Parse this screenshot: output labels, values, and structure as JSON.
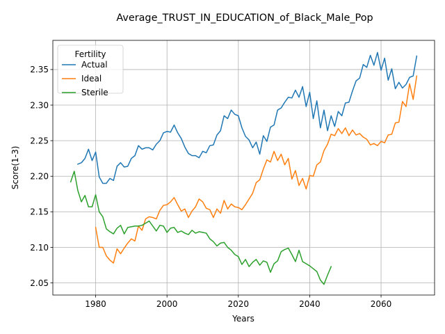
{
  "chart_data": {
    "type": "line",
    "title": "Average_TRUST_IN_EDUCATION_of_Black_Male_Pop",
    "xlabel": "Years",
    "ylabel": "Score(1-3)",
    "xlim": [
      1968,
      2075
    ],
    "ylim": [
      2.033,
      2.391
    ],
    "xticks": [
      1980,
      2000,
      2020,
      2040,
      2060
    ],
    "yticks": [
      2.05,
      2.1,
      2.15,
      2.2,
      2.25,
      2.3,
      2.35
    ],
    "grid": true,
    "legend": {
      "title": "Fertility",
      "placement": "top-left"
    },
    "series": [
      {
        "name": "Actual",
        "color": "#1f77b4",
        "x": [
          1975,
          1976,
          1977,
          1978,
          1979,
          1980,
          1981,
          1982,
          1983,
          1984,
          1985,
          1986,
          1987,
          1988,
          1989,
          1990,
          1991,
          1992,
          1993,
          1994,
          1995,
          1996,
          1997,
          1998,
          1999,
          2000,
          2001,
          2002,
          2003,
          2004,
          2005,
          2006,
          2007,
          2008,
          2009,
          2010,
          2011,
          2012,
          2013,
          2014,
          2015,
          2016,
          2017,
          2018,
          2019,
          2020,
          2021,
          2022,
          2023,
          2024,
          2025,
          2026,
          2027,
          2028,
          2029,
          2030,
          2031,
          2032,
          2033,
          2034,
          2035,
          2036,
          2037,
          2038,
          2039,
          2040,
          2041,
          2042,
          2043,
          2044,
          2045,
          2046,
          2047,
          2048,
          2049,
          2050,
          2051,
          2052,
          2053,
          2054,
          2055,
          2056,
          2057,
          2058,
          2059,
          2060,
          2061,
          2062,
          2063,
          2064,
          2065,
          2066,
          2067,
          2068,
          2069,
          2070
        ],
        "y": [
          2.217,
          2.219,
          2.225,
          2.238,
          2.222,
          2.234,
          2.199,
          2.19,
          2.19,
          2.197,
          2.194,
          2.214,
          2.219,
          2.213,
          2.214,
          2.225,
          2.229,
          2.243,
          2.238,
          2.24,
          2.24,
          2.237,
          2.245,
          2.25,
          2.261,
          2.263,
          2.262,
          2.272,
          2.261,
          2.253,
          2.241,
          2.232,
          2.229,
          2.229,
          2.226,
          2.235,
          2.233,
          2.243,
          2.244,
          2.258,
          2.264,
          2.285,
          2.281,
          2.293,
          2.287,
          2.285,
          2.268,
          2.256,
          2.251,
          2.24,
          2.248,
          2.231,
          2.257,
          2.249,
          2.269,
          2.272,
          2.293,
          2.296,
          2.304,
          2.311,
          2.31,
          2.321,
          2.311,
          2.326,
          2.298,
          2.318,
          2.281,
          2.306,
          2.268,
          2.293,
          2.264,
          2.285,
          2.27,
          2.291,
          2.285,
          2.303,
          2.304,
          2.32,
          2.334,
          2.338,
          2.357,
          2.353,
          2.37,
          2.356,
          2.374,
          2.349,
          2.366,
          2.335,
          2.351,
          2.323,
          2.332,
          2.324,
          2.329,
          2.339,
          2.341,
          2.369
        ]
      },
      {
        "name": "Ideal",
        "color": "#ff7f0e",
        "x": [
          1980,
          1981,
          1982,
          1983,
          1984,
          1985,
          1986,
          1987,
          1988,
          1989,
          1990,
          1991,
          1992,
          1993,
          1994,
          1995,
          1996,
          1997,
          1998,
          1999,
          2000,
          2001,
          2002,
          2003,
          2004,
          2005,
          2006,
          2007,
          2008,
          2009,
          2010,
          2011,
          2012,
          2013,
          2014,
          2015,
          2016,
          2017,
          2018,
          2019,
          2020,
          2021,
          2022,
          2023,
          2024,
          2025,
          2026,
          2027,
          2028,
          2029,
          2030,
          2031,
          2032,
          2033,
          2034,
          2035,
          2036,
          2037,
          2038,
          2039,
          2040,
          2041,
          2042,
          2043,
          2044,
          2045,
          2046,
          2047,
          2048,
          2049,
          2050,
          2051,
          2052,
          2053,
          2054,
          2055,
          2056,
          2057,
          2058,
          2059,
          2060,
          2061,
          2062,
          2063,
          2064,
          2065,
          2066,
          2067,
          2068,
          2069,
          2070
        ],
        "y": [
          2.128,
          2.1,
          2.1,
          2.088,
          2.082,
          2.078,
          2.098,
          2.091,
          2.099,
          2.106,
          2.112,
          2.109,
          2.13,
          2.124,
          2.14,
          2.143,
          2.142,
          2.14,
          2.152,
          2.159,
          2.16,
          2.164,
          2.17,
          2.16,
          2.151,
          2.154,
          2.142,
          2.151,
          2.157,
          2.168,
          2.164,
          2.155,
          2.153,
          2.142,
          2.154,
          2.148,
          2.166,
          2.154,
          2.161,
          2.157,
          2.156,
          2.153,
          2.16,
          2.168,
          2.176,
          2.191,
          2.195,
          2.21,
          2.223,
          2.22,
          2.235,
          2.222,
          2.231,
          2.216,
          2.225,
          2.196,
          2.208,
          2.187,
          2.197,
          2.182,
          2.201,
          2.2,
          2.216,
          2.22,
          2.236,
          2.245,
          2.259,
          2.257,
          2.267,
          2.26,
          2.268,
          2.257,
          2.265,
          2.258,
          2.26,
          2.255,
          2.252,
          2.244,
          2.246,
          2.243,
          2.249,
          2.247,
          2.258,
          2.259,
          2.275,
          2.276,
          2.305,
          2.298,
          2.33,
          2.308,
          2.341
        ]
      },
      {
        "name": "Sterile",
        "color": "#2ca02c",
        "x": [
          1973,
          1974,
          1975,
          1976,
          1977,
          1978,
          1979,
          1980,
          1981,
          1982,
          1983,
          1984,
          1985,
          1986,
          1987,
          1988,
          1989,
          1990,
          1991,
          1992,
          1993,
          1994,
          1995,
          1996,
          1997,
          1998,
          1999,
          2000,
          2001,
          2002,
          2003,
          2004,
          2005,
          2006,
          2007,
          2008,
          2009,
          2010,
          2011,
          2012,
          2013,
          2014,
          2015,
          2016,
          2017,
          2018,
          2019,
          2020,
          2021,
          2022,
          2023,
          2024,
          2025,
          2026,
          2027,
          2028,
          2029,
          2030,
          2031,
          2032,
          2033,
          2034,
          2035,
          2036,
          2037,
          2038,
          2039,
          2040,
          2041,
          2042,
          2043,
          2044,
          2045,
          2046
        ],
        "y": [
          2.192,
          2.207,
          2.18,
          2.164,
          2.173,
          2.157,
          2.157,
          2.174,
          2.15,
          2.143,
          2.126,
          2.122,
          2.119,
          2.127,
          2.131,
          2.119,
          2.128,
          2.129,
          2.13,
          2.13,
          2.131,
          2.134,
          2.137,
          2.13,
          2.123,
          2.131,
          2.13,
          2.121,
          2.127,
          2.128,
          2.121,
          2.123,
          2.12,
          2.118,
          2.124,
          2.12,
          2.122,
          2.121,
          2.12,
          2.112,
          2.108,
          2.102,
          2.106,
          2.107,
          2.1,
          2.096,
          2.09,
          2.087,
          2.076,
          2.083,
          2.073,
          2.079,
          2.083,
          2.075,
          2.081,
          2.079,
          2.065,
          2.077,
          2.081,
          2.094,
          2.097,
          2.099,
          2.09,
          2.08,
          2.096,
          2.08,
          2.077,
          2.074,
          2.07,
          2.066,
          2.054,
          2.048,
          2.061,
          2.073
        ]
      }
    ]
  }
}
